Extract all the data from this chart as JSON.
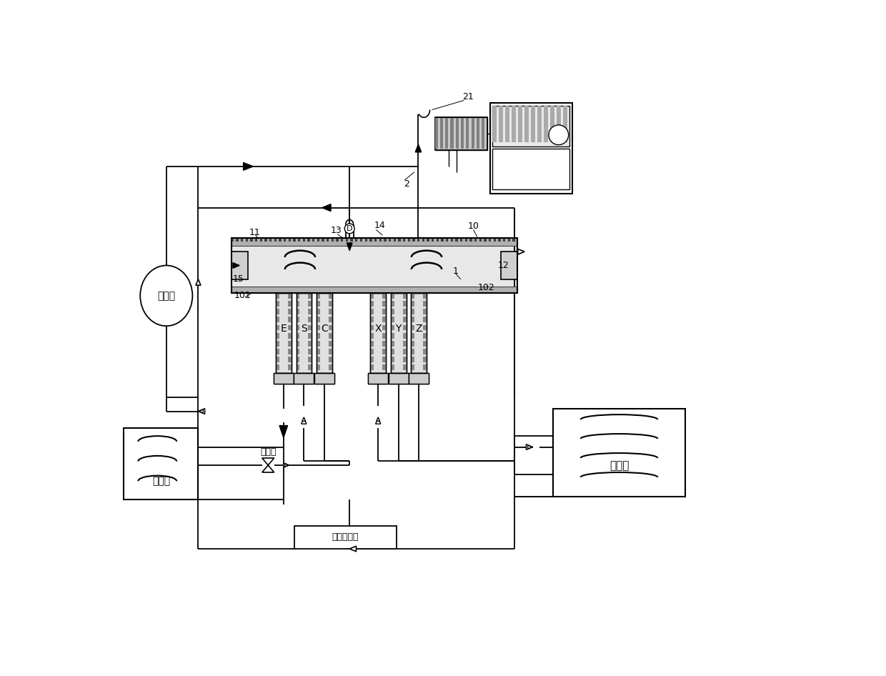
{
  "bg_color": "#ffffff",
  "line_color": "#000000",
  "labels": {
    "compressor": "压缩机",
    "indoor": "室内机",
    "outdoor": "室外机",
    "expansion": "膨胀阀",
    "controller": "变频控制器"
  },
  "coil_labels": [
    "E",
    "S",
    "C",
    "X",
    "Y",
    "Z"
  ],
  "numbers": {
    "n1": "1",
    "n2": "2",
    "n10": "10",
    "n11": "11",
    "n12": "12",
    "n13": "13",
    "n14": "14",
    "n15": "15",
    "n21": "21",
    "n101": "101",
    "n102": "102",
    "nD": "D"
  }
}
